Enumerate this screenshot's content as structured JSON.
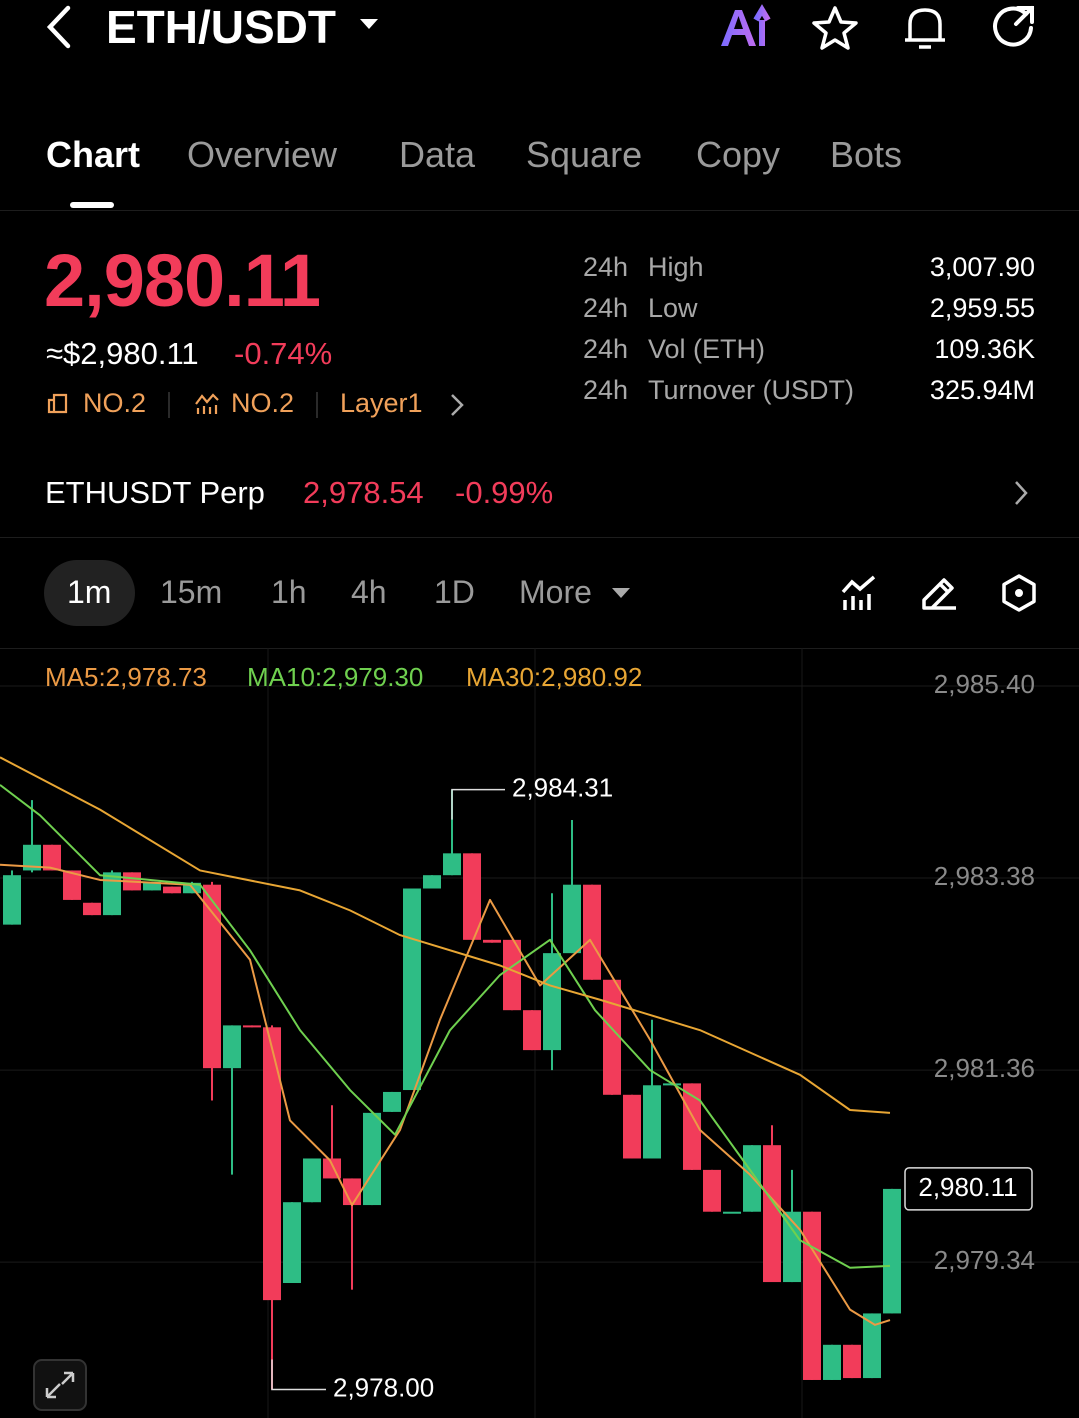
{
  "header": {
    "title": "ETH/USDT"
  },
  "tabs": [
    "Chart",
    "Overview",
    "Data",
    "Square",
    "Copy",
    "Bots"
  ],
  "price": {
    "last": "2,980.11",
    "approx": "≈$2,980.11",
    "change": "-0.74%",
    "badges": [
      "NO.2",
      "NO.2",
      "Layer1"
    ]
  },
  "stats": [
    [
      "24h",
      "High",
      "3,007.90"
    ],
    [
      "24h",
      "Low",
      "2,959.55"
    ],
    [
      "24h",
      "Vol (ETH)",
      "109.36K"
    ],
    [
      "24h",
      "Turnover (USDT)",
      "325.94M"
    ]
  ],
  "perp": {
    "name": "ETHUSDT Perp",
    "price": "2,978.54",
    "change": "-0.99%"
  },
  "intervals": [
    "1m",
    "15m",
    "1h",
    "4h",
    "1D",
    "More"
  ],
  "chart_data": {
    "type": "candlestick",
    "up_color": "#2ebd85",
    "down_color": "#f23c5a",
    "ylim": [
      2977.7,
      2985.8
    ],
    "xlim": [
      -0.6,
      53.35
    ],
    "yticks": [
      {
        "value": 2985.4,
        "label": "2,985.40"
      },
      {
        "value": 2983.38,
        "label": "2,983.38"
      },
      {
        "value": 2981.36,
        "label": "2,981.36"
      },
      {
        "value": 2979.34,
        "label": "2,979.34"
      }
    ],
    "grid": true,
    "open": [
      2982.89,
      2983.46,
      2983.73,
      2983.46,
      2983.12,
      2982.99,
      2983.44,
      2983.25,
      2983.29,
      2983.22,
      2983.31,
      2981.38,
      2981.83,
      2981.81,
      2979.12,
      2979.97,
      2980.43,
      2980.22,
      2979.94,
      2980.92,
      2981.15,
      2983.27,
      2983.41,
      2983.64,
      2982.73,
      2982.73,
      2981.99,
      2981.57,
      2982.59,
      2983.31,
      2982.31,
      2981.1,
      2980.43,
      2981.2,
      2981.22,
      2980.31,
      2979.87,
      2979.87,
      2980.57,
      2979.13,
      2979.87,
      2978.1,
      2978.47,
      2978.12,
      2978.8
    ],
    "high": [
      2983.46,
      2984.2,
      2983.73,
      2983.46,
      2983.12,
      2983.46,
      2983.44,
      2983.34,
      2983.29,
      2983.34,
      2983.34,
      2981.83,
      2981.83,
      2981.83,
      2979.97,
      2980.43,
      2980.99,
      2980.22,
      2980.91,
      2981.13,
      2983.27,
      2983.41,
      2984.31,
      2983.64,
      2982.73,
      2982.73,
      2981.99,
      2983.22,
      2983.99,
      2983.31,
      2982.31,
      2981.1,
      2981.89,
      2981.22,
      2981.22,
      2980.31,
      2979.87,
      2980.57,
      2980.78,
      2980.31,
      2979.87,
      2978.47,
      2978.47,
      2978.8,
      2980.11
    ],
    "low": [
      2982.89,
      2983.44,
      2983.46,
      2983.15,
      2982.99,
      2982.99,
      2983.25,
      2983.25,
      2983.22,
      2983.22,
      2981.04,
      2980.26,
      2981.81,
      2978.0,
      2979.12,
      2979.97,
      2980.22,
      2979.05,
      2979.94,
      2980.92,
      2981.15,
      2983.27,
      2983.41,
      2982.73,
      2982.7,
      2981.99,
      2981.57,
      2981.36,
      2982.59,
      2982.31,
      2981.1,
      2980.43,
      2980.43,
      2981.2,
      2980.31,
      2979.87,
      2979.87,
      2979.87,
      2979.13,
      2979.13,
      2978.1,
      2978.1,
      2978.12,
      2978.12,
      2978.8
    ],
    "close": [
      2983.41,
      2983.73,
      2983.46,
      2983.15,
      2982.99,
      2983.44,
      2983.25,
      2983.34,
      2983.22,
      2983.33,
      2981.38,
      2981.83,
      2981.81,
      2978.94,
      2979.97,
      2980.43,
      2980.22,
      2979.94,
      2980.91,
      2981.13,
      2983.27,
      2983.41,
      2983.64,
      2982.73,
      2982.7,
      2981.99,
      2981.57,
      2982.59,
      2983.31,
      2982.31,
      2981.1,
      2980.43,
      2981.2,
      2981.22,
      2980.31,
      2979.87,
      2979.87,
      2980.57,
      2979.13,
      2979.87,
      2978.1,
      2978.47,
      2978.12,
      2978.8,
      2980.11
    ],
    "series": [
      {
        "name": "MA5:2,978.73",
        "color": "#eb9a45",
        "x": [
          -0.6,
          1.9,
          4.4,
          8.9,
          11.9,
          13.9,
          15.9,
          17.0,
          19.4,
          21.4,
          23.9,
          26.4,
          28.9,
          31.9,
          34.4,
          36.9,
          39.4,
          41.9,
          43.15,
          43.9
        ],
        "values": [
          2983.52,
          2983.49,
          2983.36,
          2983.31,
          2982.52,
          2980.83,
          2980.41,
          2979.94,
          2980.73,
          2981.89,
          2983.15,
          2982.25,
          2982.73,
          2981.68,
          2980.73,
          2980.26,
          2979.68,
          2978.84,
          2978.68,
          2978.73
        ]
      },
      {
        "name": "MA10:2,979.30",
        "color": "#6fd04f",
        "x": [
          -0.6,
          1.4,
          4.4,
          9.4,
          11.9,
          14.4,
          16.9,
          19.15,
          21.9,
          24.4,
          26.9,
          29.15,
          31.9,
          34.4,
          36.9,
          39.4,
          41.9,
          43.9
        ],
        "values": [
          2984.36,
          2984.04,
          2983.41,
          2983.31,
          2982.62,
          2981.78,
          2981.15,
          2980.68,
          2981.78,
          2982.36,
          2982.73,
          2981.99,
          2981.36,
          2981.04,
          2980.31,
          2979.57,
          2979.28,
          2979.3
        ]
      },
      {
        "name": "MA30:2,980.92",
        "color": "#e8a634",
        "x": [
          -0.6,
          4.4,
          9.4,
          14.4,
          16.9,
          19.4,
          24.4,
          26.9,
          29.4,
          34.4,
          39.4,
          41.9,
          43.9
        ],
        "values": [
          2984.65,
          2984.1,
          2983.46,
          2983.25,
          2983.04,
          2982.78,
          2982.46,
          2982.25,
          2982.1,
          2981.78,
          2981.31,
          2980.94,
          2980.91
        ]
      }
    ],
    "annotations": [
      {
        "value": 2984.31,
        "label": "2,984.31"
      },
      {
        "value": 2978.0,
        "label": "2,978.00"
      }
    ],
    "current": {
      "value": 2980.11,
      "label": "2,980.11"
    }
  }
}
